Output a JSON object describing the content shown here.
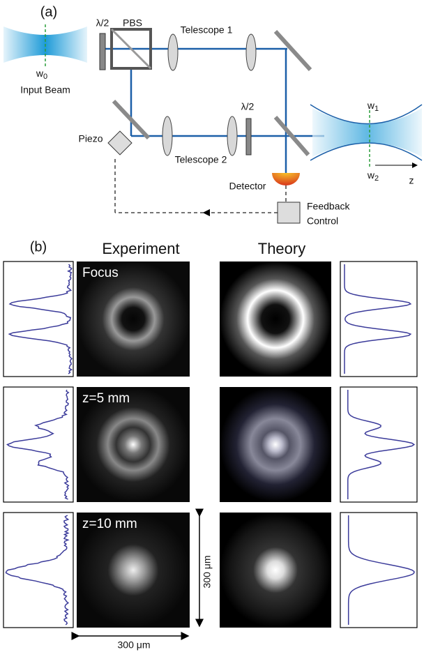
{
  "panel_a": {
    "label": "(a)",
    "input_beam": "Input Beam",
    "w0": {
      "base": "w",
      "sub": "0"
    },
    "half_wave_1": "λ/2",
    "pbs": "PBS",
    "telescope_1": "Telescope 1",
    "piezo": "Piezo",
    "telescope_2": "Telescope 2",
    "half_wave_2": "λ/2",
    "detector": "Detector",
    "feedback": [
      "Feedback",
      "Control"
    ],
    "w1": {
      "base": "w",
      "sub": "1"
    },
    "w2": {
      "base": "w",
      "sub": "2"
    },
    "z_axis": "z"
  },
  "panel_b": {
    "label": "(b)",
    "experiment": "Experiment",
    "theory": "Theory",
    "rows": [
      "Focus",
      "z=5 mm",
      "z=10 mm"
    ],
    "scale_vertical": "300 μm",
    "scale_horizontal": "300 μm"
  }
}
